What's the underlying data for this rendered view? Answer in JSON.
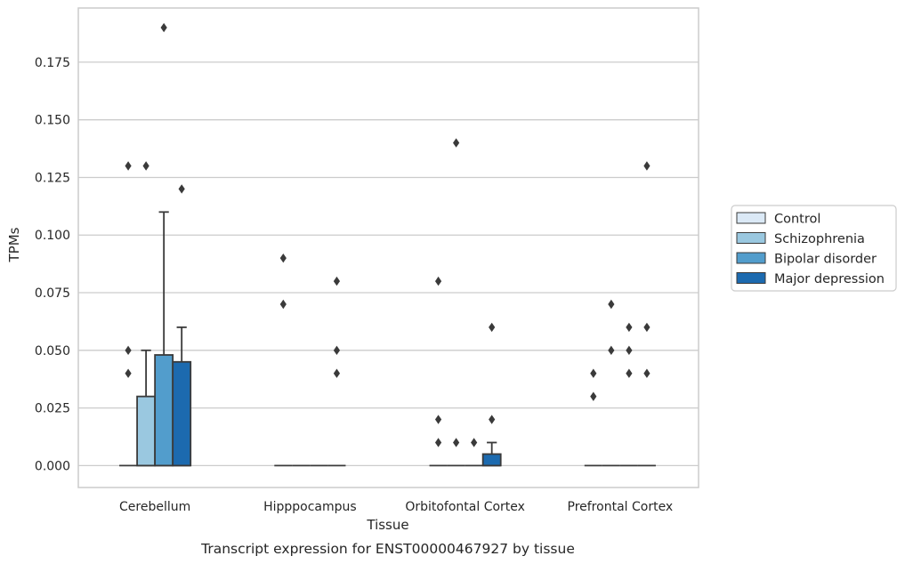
{
  "chart_data": {
    "type": "box",
    "title": "",
    "caption": "Transcript expression for ENST00000467927 by tissue",
    "xlabel": "Tissue",
    "ylabel": "TPMs",
    "ylim": [
      -0.0095,
      0.1985
    ],
    "yticks": [
      "0.000",
      "0.025",
      "0.050",
      "0.075",
      "0.100",
      "0.125",
      "0.150",
      "0.175"
    ],
    "ytick_values": [
      0,
      0.025,
      0.05,
      0.075,
      0.1,
      0.125,
      0.15,
      0.175
    ],
    "grid": true,
    "legend_position": "right",
    "categories": [
      "Cerebellum",
      "Hipppocampus",
      "Orbitofontal Cortex",
      "Prefrontal Cortex"
    ],
    "series": [
      {
        "name": "Control",
        "color": "#dbe9f6",
        "boxes": [
          {
            "q1": 0,
            "median": 0,
            "q3": 0,
            "whisker_low": 0,
            "whisker_high": 0,
            "outliers": [
              0.04,
              0.05,
              0.13
            ]
          },
          {
            "q1": 0,
            "median": 0,
            "q3": 0,
            "whisker_low": 0,
            "whisker_high": 0,
            "outliers": [
              0.07,
              0.09
            ]
          },
          {
            "q1": 0,
            "median": 0,
            "q3": 0,
            "whisker_low": 0,
            "whisker_high": 0,
            "outliers": [
              0.01,
              0.02,
              0.08
            ]
          },
          {
            "q1": 0,
            "median": 0,
            "q3": 0,
            "whisker_low": 0,
            "whisker_high": 0,
            "outliers": [
              0.03,
              0.04
            ]
          }
        ]
      },
      {
        "name": "Schizophrenia",
        "color": "#9ac8e0",
        "boxes": [
          {
            "q1": 0,
            "median": 0,
            "q3": 0.03,
            "whisker_low": 0,
            "whisker_high": 0.05,
            "outliers": [
              0.13
            ]
          },
          {
            "q1": 0,
            "median": 0,
            "q3": 0,
            "whisker_low": 0,
            "whisker_high": 0,
            "outliers": []
          },
          {
            "q1": 0,
            "median": 0,
            "q3": 0,
            "whisker_low": 0,
            "whisker_high": 0,
            "outliers": [
              0.01,
              0.14
            ]
          },
          {
            "q1": 0,
            "median": 0,
            "q3": 0,
            "whisker_low": 0,
            "whisker_high": 0,
            "outliers": [
              0.05,
              0.07
            ]
          }
        ]
      },
      {
        "name": "Bipolar disorder",
        "color": "#529dcc",
        "boxes": [
          {
            "q1": 0,
            "median": 0,
            "q3": 0.048,
            "whisker_low": 0,
            "whisker_high": 0.11,
            "outliers": [
              0.19
            ]
          },
          {
            "q1": 0,
            "median": 0,
            "q3": 0,
            "whisker_low": 0,
            "whisker_high": 0,
            "outliers": []
          },
          {
            "q1": 0,
            "median": 0,
            "q3": 0,
            "whisker_low": 0,
            "whisker_high": 0,
            "outliers": [
              0.01
            ]
          },
          {
            "q1": 0,
            "median": 0,
            "q3": 0,
            "whisker_low": 0,
            "whisker_high": 0,
            "outliers": [
              0.04,
              0.05,
              0.06
            ]
          }
        ]
      },
      {
        "name": "Major depression",
        "color": "#1c6aaf",
        "boxes": [
          {
            "q1": 0,
            "median": 0,
            "q3": 0.045,
            "whisker_low": 0,
            "whisker_high": 0.06,
            "outliers": [
              0.12
            ]
          },
          {
            "q1": 0,
            "median": 0,
            "q3": 0,
            "whisker_low": 0,
            "whisker_high": 0,
            "outliers": [
              0.04,
              0.05,
              0.08
            ]
          },
          {
            "q1": 0,
            "median": 0,
            "q3": 0.005,
            "whisker_low": 0,
            "whisker_high": 0.01,
            "outliers": [
              0.02,
              0.06
            ]
          },
          {
            "q1": 0,
            "median": 0,
            "q3": 0,
            "whisker_low": 0,
            "whisker_high": 0,
            "outliers": [
              0.04,
              0.06,
              0.13
            ]
          }
        ]
      }
    ]
  }
}
